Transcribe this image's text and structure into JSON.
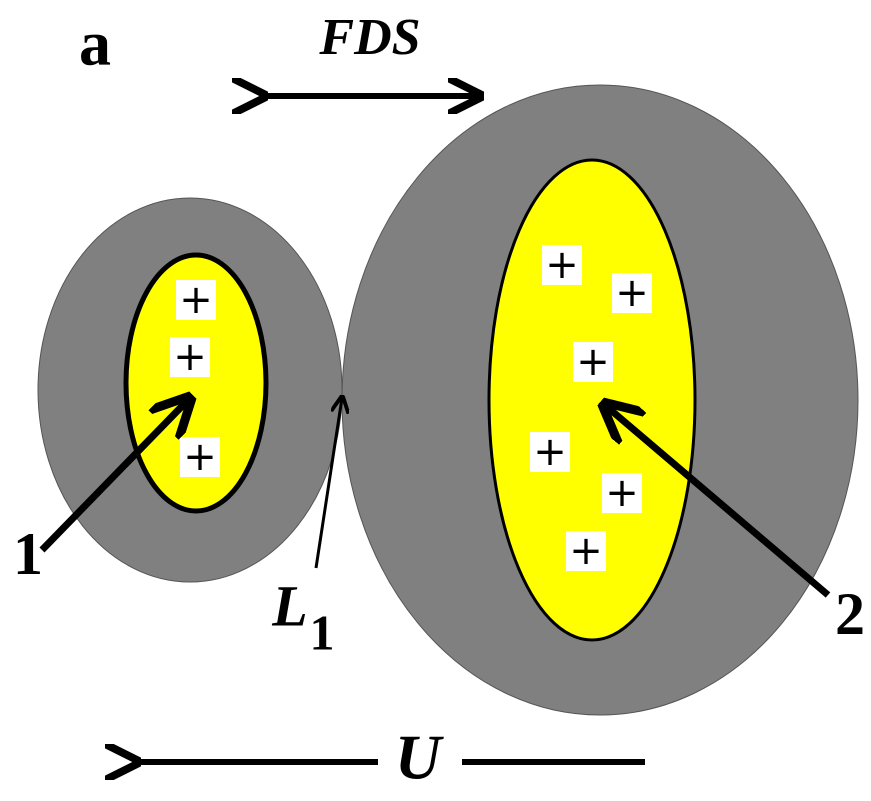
{
  "panel_label": "a",
  "force_label": "FDS",
  "velocity_label": "U",
  "contact_label": {
    "main": "L",
    "sub": "1"
  },
  "left_cell": {
    "label": "1",
    "charges": [
      "+",
      "+",
      "+"
    ]
  },
  "right_cell": {
    "label": "2",
    "charges": [
      "+",
      "+",
      "+",
      "+",
      "+",
      "+"
    ]
  }
}
